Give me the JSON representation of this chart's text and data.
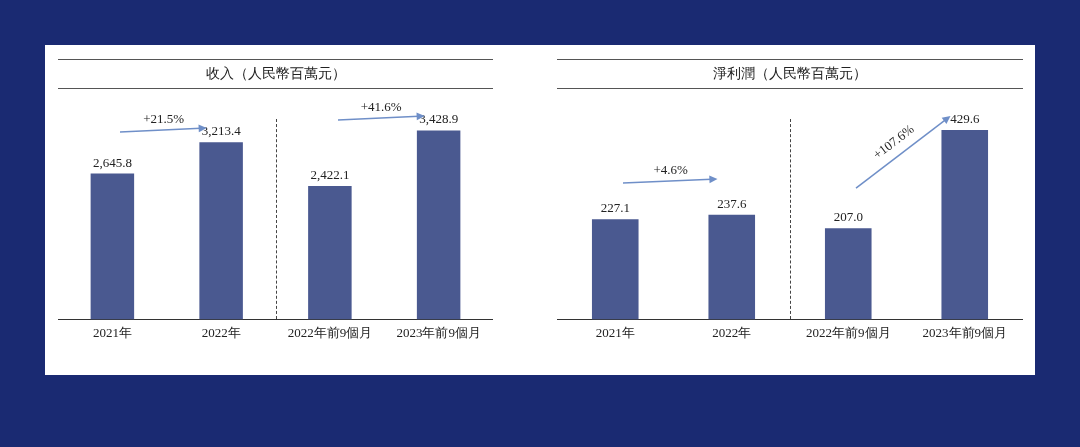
{
  "chart_data": [
    {
      "type": "bar",
      "title": "收入（人民幣百萬元）",
      "categories": [
        "2021年",
        "2022年",
        "2022年前9個月",
        "2023年前9個月"
      ],
      "values": [
        2645.8,
        3213.4,
        2422.1,
        3428.9
      ],
      "value_labels": [
        "2,645.8",
        "3,213.4",
        "2,422.1",
        "3,428.9"
      ],
      "color": "#4a5990",
      "grid": false,
      "legend": false,
      "annotations": [
        "+21.5%",
        "+41.6%"
      ]
    },
    {
      "type": "bar",
      "title": "淨利潤（人民幣百萬元）",
      "categories": [
        "2021年",
        "2022年",
        "2022年前9個月",
        "2023年前9個月"
      ],
      "values": [
        227.1,
        237.6,
        207.0,
        429.6
      ],
      "value_labels": [
        "227.1",
        "237.6",
        "207.0",
        "429.6"
      ],
      "color": "#4a5990",
      "grid": false,
      "legend": false,
      "annotations": [
        "+4.6%",
        "+107.6%"
      ]
    }
  ]
}
